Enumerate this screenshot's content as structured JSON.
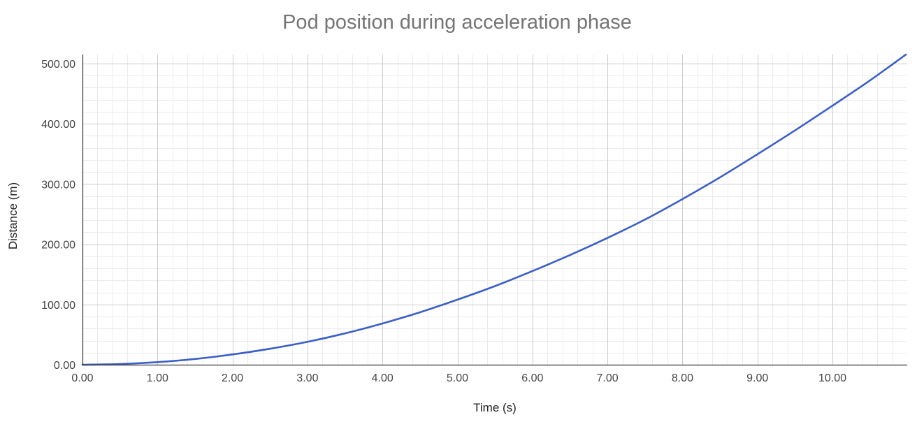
{
  "chart_data": {
    "type": "line",
    "title": "Pod position during acceleration phase",
    "xlabel": "Time (s)",
    "ylabel": "Distance (m)",
    "xlim": [
      0,
      11
    ],
    "ylim": [
      0,
      515
    ],
    "x_ticks": [
      "0.00",
      "1.00",
      "2.00",
      "3.00",
      "4.00",
      "5.00",
      "6.00",
      "7.00",
      "8.00",
      "9.00",
      "10.00"
    ],
    "y_ticks": [
      "0.00",
      "100.00",
      "200.00",
      "300.00",
      "400.00",
      "500.00"
    ],
    "grid": true,
    "legend": "none",
    "series": [
      {
        "color": "#3b5fc8",
        "x": [
          0,
          0.5,
          1,
          1.5,
          2,
          2.5,
          3,
          3.5,
          4,
          4.5,
          5,
          5.5,
          6,
          6.5,
          7,
          7.5,
          8,
          8.5,
          9,
          9.5,
          10,
          10.5,
          10.98
        ],
        "y": [
          0,
          1.1,
          4.3,
          9.5,
          17,
          26.5,
          38,
          52,
          68.5,
          87,
          108,
          130.5,
          155.5,
          182,
          210.5,
          241,
          275,
          311,
          349.5,
          389,
          430,
          472,
          515
        ]
      }
    ]
  }
}
